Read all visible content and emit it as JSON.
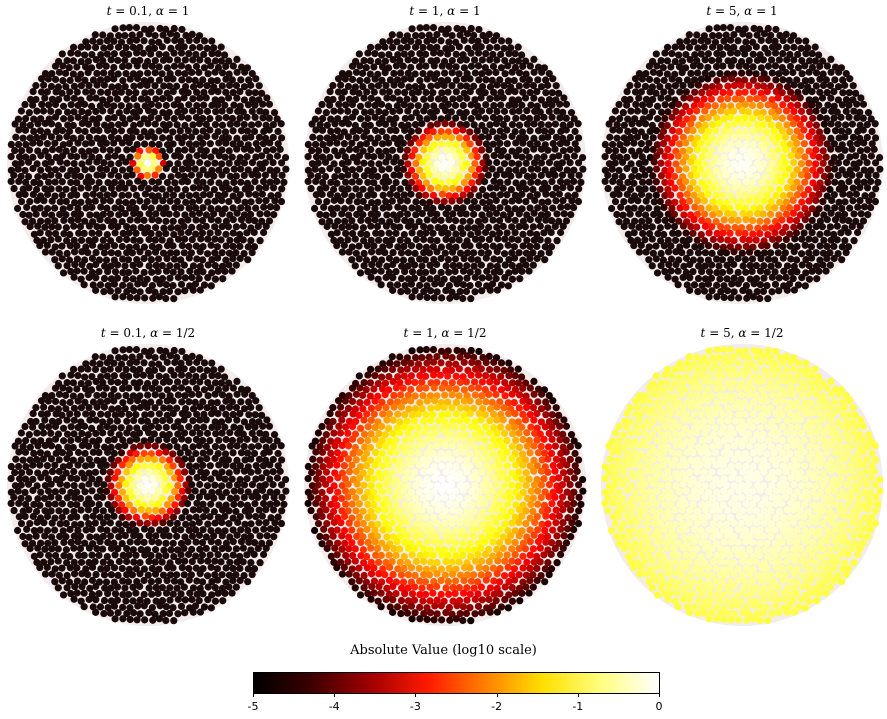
{
  "panels": [
    {
      "id": "p1",
      "t": "0.1",
      "alpha": "1",
      "spread": 0.06,
      "peak": 1.0
    },
    {
      "id": "p2",
      "t": "1",
      "alpha": "1",
      "spread": 0.14,
      "peak": 1.0
    },
    {
      "id": "p3",
      "t": "5",
      "alpha": "1",
      "spread": 0.3,
      "peak": 0.9
    },
    {
      "id": "p4",
      "t": "0.1",
      "alpha": "1/2",
      "spread": 0.14,
      "peak": 1.0
    },
    {
      "id": "p5",
      "t": "1",
      "alpha": "1/2",
      "spread": 0.45,
      "peak": 1.0
    },
    {
      "id": "p6",
      "t": "5",
      "alpha": "1/2",
      "spread": 1.1,
      "peak": 0.75
    }
  ],
  "colorbar": {
    "title": "Absolute Value (log10 scale)",
    "ticks": [
      "-5",
      "-4",
      "-3",
      "-2",
      "-1",
      "0"
    ],
    "colormap": "hot",
    "stops": [
      "#000000",
      "#3d0000",
      "#a00000",
      "#ff1a00",
      "#ff8000",
      "#ffe000",
      "#ffff80",
      "#ffffff"
    ]
  },
  "background_node_color": "#1a0a0a",
  "edge_color": "#ffffff"
}
